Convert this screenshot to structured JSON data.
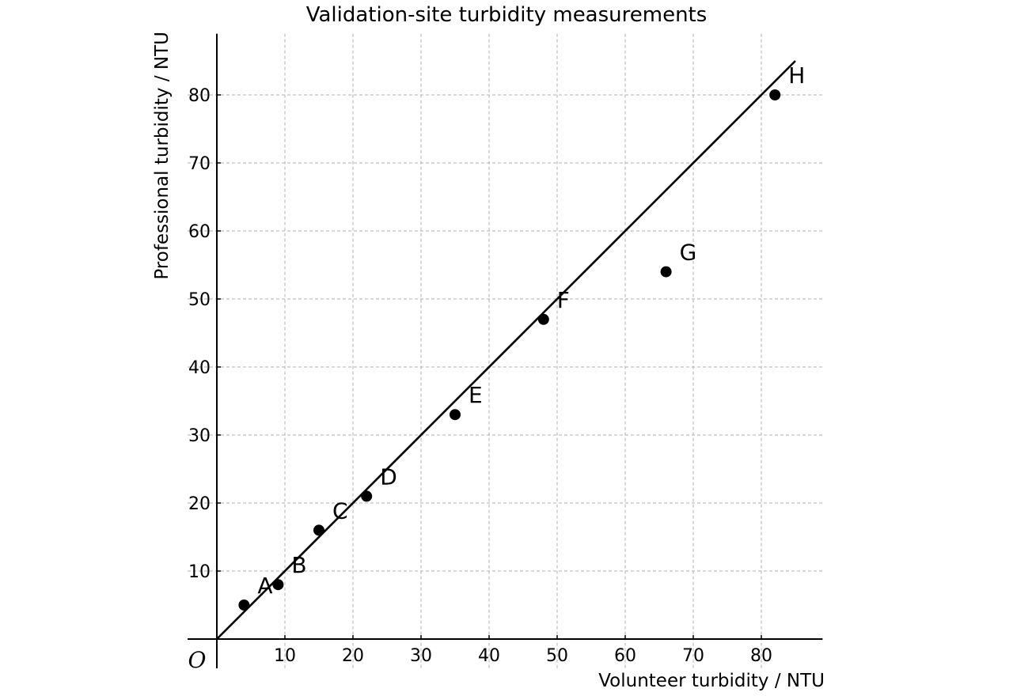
{
  "chart_data": {
    "type": "scatter",
    "title": "Validation-site turbidity measurements",
    "xlabel": "Volunteer turbidity / NTU",
    "ylabel": "Professional turbidity / NTU",
    "origin_label": "O",
    "xlim": [
      -4.3,
      89
    ],
    "ylim": [
      -4.3,
      89
    ],
    "x_ticks": [
      10,
      20,
      30,
      40,
      50,
      60,
      70,
      80
    ],
    "y_ticks": [
      10,
      20,
      30,
      40,
      50,
      60,
      70,
      80
    ],
    "x_tick_labels": [
      "10",
      "20",
      "30",
      "40",
      "50",
      "60",
      "70",
      "80"
    ],
    "y_tick_labels": [
      "10",
      "20",
      "30",
      "40",
      "50",
      "60",
      "70",
      "80"
    ],
    "grid": true,
    "points": [
      {
        "label": "A",
        "x": 4,
        "y": 5
      },
      {
        "label": "B",
        "x": 9,
        "y": 8
      },
      {
        "label": "C",
        "x": 15,
        "y": 16
      },
      {
        "label": "D",
        "x": 22,
        "y": 21
      },
      {
        "label": "E",
        "x": 35,
        "y": 33
      },
      {
        "label": "F",
        "x": 48,
        "y": 47
      },
      {
        "label": "G",
        "x": 66,
        "y": 54
      },
      {
        "label": "H",
        "x": 82,
        "y": 80
      }
    ],
    "reference_line": {
      "x": [
        0,
        85
      ],
      "y": [
        0,
        85
      ]
    }
  }
}
